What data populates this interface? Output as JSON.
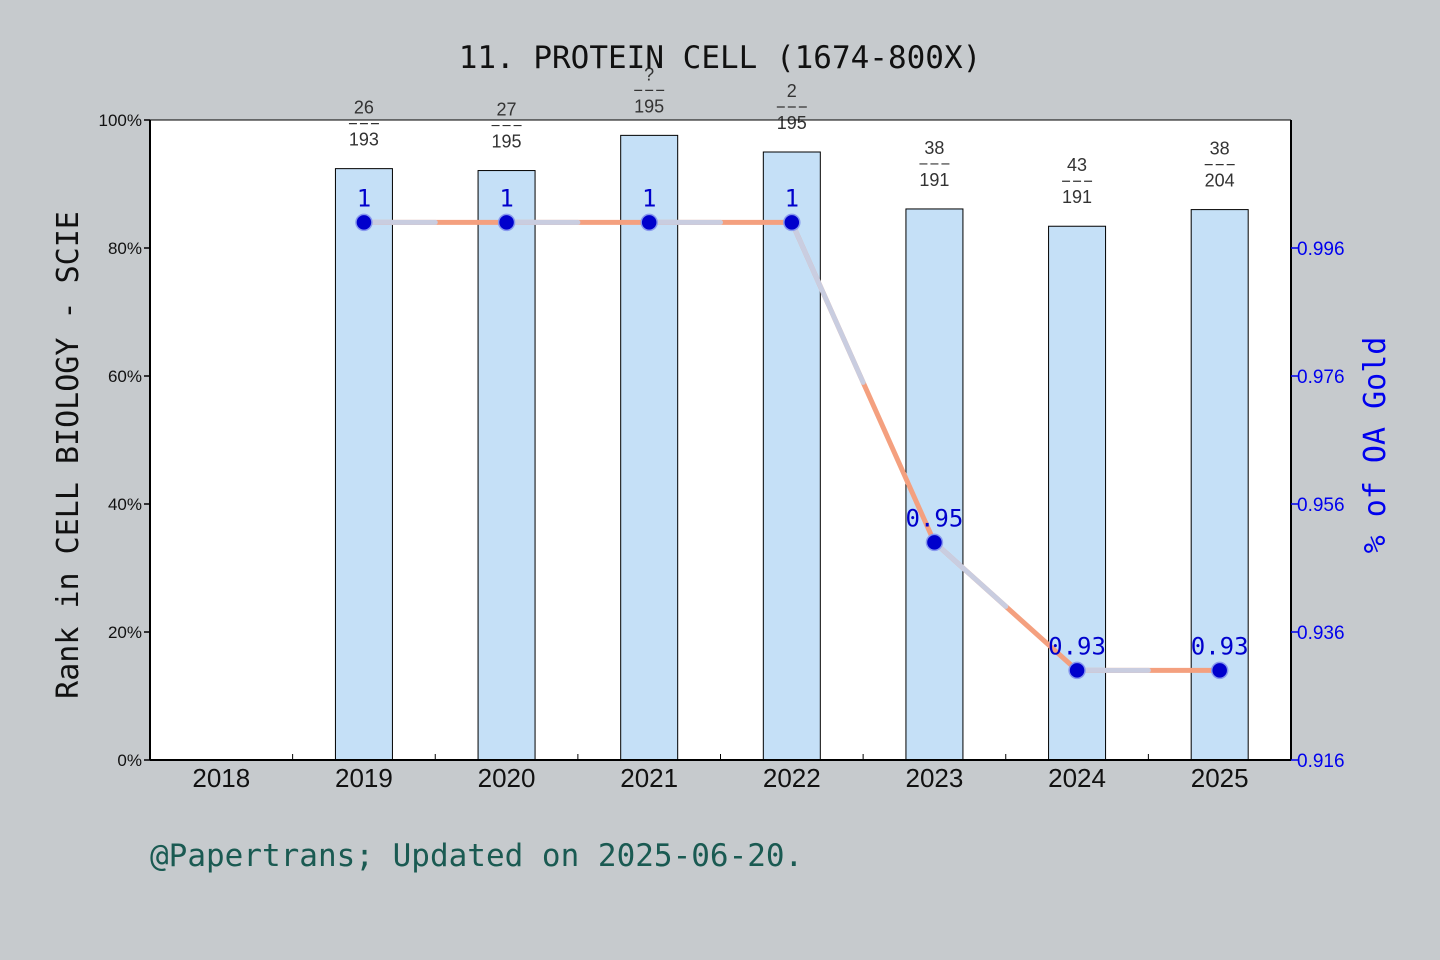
{
  "page": {
    "background": "#c6cacd",
    "footer_text": "@Papertrans; Updated on 2025-06-20."
  },
  "chart_data": {
    "type": "bar",
    "title": "11. PROTEIN CELL (1674-800X)",
    "ylabel": "Rank in CELL BIOLOGY - SCIE",
    "y2label": "% of OA Gold",
    "categories": [
      "2018",
      "2019",
      "2020",
      "2021",
      "2022",
      "2023",
      "2024",
      "2025"
    ],
    "ylim": [
      0,
      100
    ],
    "yticks": [
      "0%",
      "20%",
      "40%",
      "60%",
      "80%",
      "100%"
    ],
    "y2lim": [
      0.916,
      1.016
    ],
    "y2ticks": [
      "0.916",
      "0.936",
      "0.956",
      "0.976",
      "0.996"
    ],
    "bars": {
      "color": "#c5e0f7",
      "values": [
        null,
        92.4,
        92.1,
        97.6,
        95.0,
        86.1,
        83.4,
        86.0
      ],
      "rank": [
        null,
        "26",
        "27",
        "?",
        "2",
        "38",
        "43",
        "38"
      ],
      "total": [
        null,
        "193",
        "195",
        "195",
        "195",
        "191",
        "191",
        "204"
      ]
    },
    "line": {
      "name": "% of OA Gold",
      "colors": [
        "#f4a07f",
        "#c9cde0"
      ],
      "marker_color": "#0000cc",
      "values": [
        null,
        1.0,
        1.0,
        1.0,
        1.0,
        0.95,
        0.93,
        0.93
      ],
      "labels": [
        null,
        "1",
        "1",
        "1",
        "1",
        "0.95",
        "0.93",
        "0.93"
      ]
    },
    "grid": false
  }
}
